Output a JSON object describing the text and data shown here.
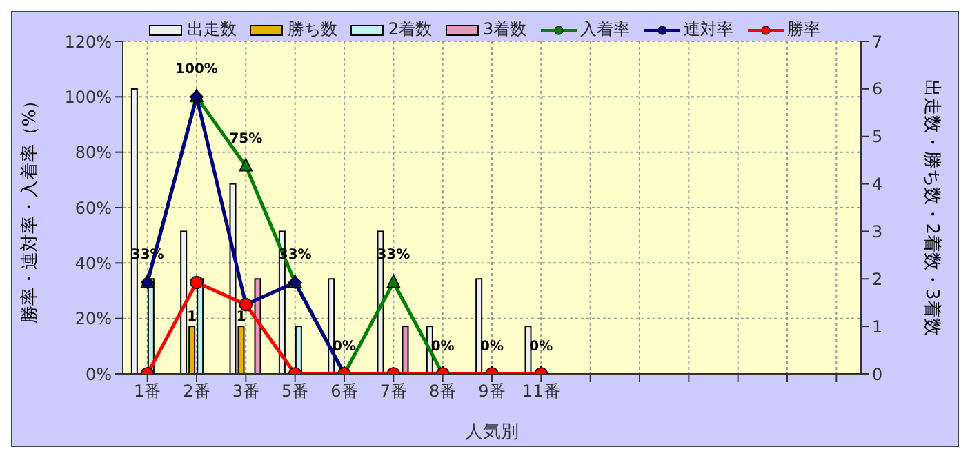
{
  "chart_data": {
    "type": "bar",
    "categories": [
      "1番",
      "2番",
      "3番",
      "5番",
      "6番",
      "7番",
      "8番",
      "9番",
      "11番",
      null,
      null,
      null,
      null,
      null,
      null
    ],
    "xlabel": "人気別",
    "ylabel": "勝率・連対率・入着率（%）",
    "y2label": "出走数・勝ち数・2着数・3着数",
    "ylim": [
      0,
      120
    ],
    "yticks": [
      {
        "value": 0,
        "label": "0%"
      },
      {
        "value": 20,
        "label": "20%"
      },
      {
        "value": 40,
        "label": "40%"
      },
      {
        "value": 60,
        "label": "60%"
      },
      {
        "value": 80,
        "label": "80%"
      },
      {
        "value": 100,
        "label": "100%"
      },
      {
        "value": 120,
        "label": "120%"
      }
    ],
    "y2lim": [
      0,
      7
    ],
    "y2ticks": [
      0,
      1,
      2,
      3,
      4,
      5,
      6,
      7
    ],
    "grid": true,
    "legend": "top",
    "series": [
      {
        "name": "出走数",
        "axis": "y2",
        "color": "#f0f0f0",
        "values": [
          6,
          3,
          4,
          3,
          2,
          3,
          1,
          2,
          1,
          null,
          null,
          null,
          null,
          null,
          null
        ]
      },
      {
        "name": "勝ち数",
        "axis": "y2",
        "color": "#e8b000",
        "values": [
          0,
          1,
          1,
          0,
          0,
          0,
          0,
          0,
          0,
          null,
          null,
          null,
          null,
          null,
          null
        ],
        "value_labels": [
          null,
          "1",
          "1",
          null,
          null,
          null,
          null,
          null,
          null,
          null,
          null,
          null,
          null,
          null,
          null
        ]
      },
      {
        "name": "2着数",
        "axis": "y2",
        "color": "#c0f0f0",
        "values": [
          2,
          2,
          0,
          1,
          0,
          0,
          0,
          0,
          0,
          null,
          null,
          null,
          null,
          null,
          null
        ]
      },
      {
        "name": "3着数",
        "axis": "y2",
        "color": "#e898b8",
        "values": [
          0,
          0,
          2,
          0,
          0,
          1,
          0,
          0,
          0,
          null,
          null,
          null,
          null,
          null,
          null
        ]
      },
      {
        "name": "入着率",
        "type": "line",
        "color": "#008000",
        "marker": "triangle",
        "values": [
          33,
          100,
          75,
          33,
          0,
          33,
          0,
          0,
          0,
          null,
          null,
          null,
          null,
          null,
          null
        ],
        "value_labels": [
          "33%",
          "100%",
          "75%",
          "33%",
          "0%",
          "33%",
          "0%",
          "0%",
          "0%",
          null,
          null,
          null,
          null,
          null,
          null
        ]
      },
      {
        "name": "連対率",
        "type": "line",
        "color": "#000080",
        "marker": "diamond",
        "values": [
          33,
          100,
          25,
          33,
          0,
          0,
          null,
          null,
          null,
          null,
          null,
          null,
          null,
          null,
          null
        ]
      },
      {
        "name": "勝率",
        "type": "line",
        "color": "#ff0000",
        "marker": "circle",
        "values": [
          0,
          33,
          25,
          0,
          0,
          0,
          0,
          0,
          0,
          null,
          null,
          null,
          null,
          null,
          null
        ]
      }
    ]
  }
}
